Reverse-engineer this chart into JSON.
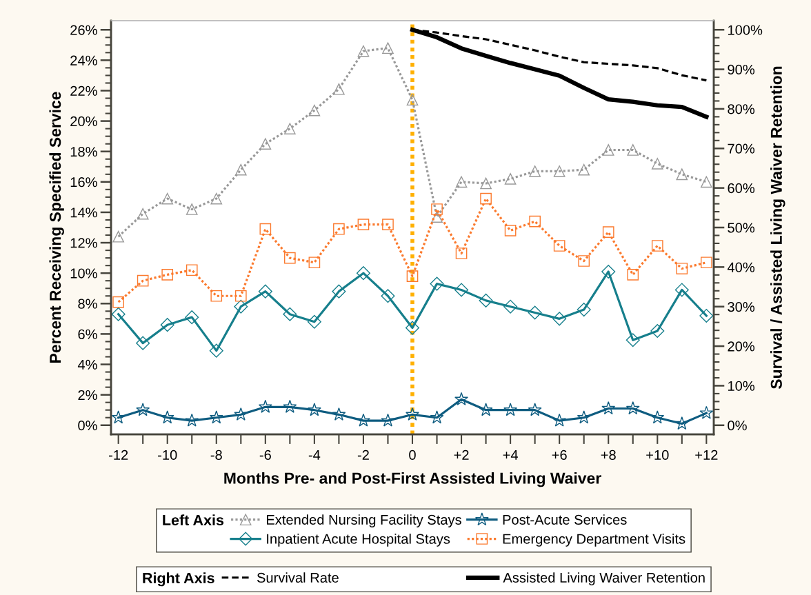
{
  "chart_data": {
    "type": "line",
    "xlabel": "Months Pre- and Post-First Assisted Living Waiver",
    "ylabel": "Percent Receiving Specified Service",
    "y2label": "Survival / Assisted Living Waiver Retention",
    "legend_title": [
      "Left Axis",
      "Right Axis"
    ],
    "legend": "bottom",
    "x": [
      -12,
      -11,
      -10,
      -9,
      -8,
      -7,
      -6,
      -5,
      -4,
      -3,
      -2,
      -1,
      0,
      1,
      2,
      3,
      4,
      5,
      6,
      7,
      8,
      9,
      10,
      11,
      12
    ],
    "xlim": [
      -12.3,
      12.3
    ],
    "xticks": [
      {
        "value": -12,
        "label": "-12"
      },
      {
        "value": -11,
        "label": null
      },
      {
        "value": -10,
        "label": "-10"
      },
      {
        "value": -9,
        "label": null
      },
      {
        "value": -8,
        "label": "-8"
      },
      {
        "value": -7,
        "label": null
      },
      {
        "value": -6,
        "label": "-6"
      },
      {
        "value": -5,
        "label": null
      },
      {
        "value": -4,
        "label": "-4"
      },
      {
        "value": -3,
        "label": null
      },
      {
        "value": -2,
        "label": "-2"
      },
      {
        "value": -1,
        "label": null
      },
      {
        "value": 0,
        "label": "0"
      },
      {
        "value": 1,
        "label": null
      },
      {
        "value": 2,
        "label": "+2"
      },
      {
        "value": 3,
        "label": null
      },
      {
        "value": 4,
        "label": "+4"
      },
      {
        "value": 5,
        "label": null
      },
      {
        "value": 6,
        "label": "+6"
      },
      {
        "value": 7,
        "label": null
      },
      {
        "value": 8,
        "label": "+8"
      },
      {
        "value": 9,
        "label": null
      },
      {
        "value": 10,
        "label": "+10"
      },
      {
        "value": 11,
        "label": null
      },
      {
        "value": 12,
        "label": "+12"
      }
    ],
    "ylim": [
      -0.6,
      26.6
    ],
    "yticks": [
      {
        "value": 0,
        "label": "0%"
      },
      {
        "value": 0.5,
        "label": null
      },
      {
        "value": 1,
        "label": null
      },
      {
        "value": 1.5,
        "label": null
      },
      {
        "value": 2,
        "label": "2%"
      },
      {
        "value": 2.5,
        "label": null
      },
      {
        "value": 3,
        "label": null
      },
      {
        "value": 3.5,
        "label": null
      },
      {
        "value": 4,
        "label": "4%"
      },
      {
        "value": 4.5,
        "label": null
      },
      {
        "value": 5,
        "label": null
      },
      {
        "value": 5.5,
        "label": null
      },
      {
        "value": 6,
        "label": "6%"
      },
      {
        "value": 6.5,
        "label": null
      },
      {
        "value": 7,
        "label": null
      },
      {
        "value": 7.5,
        "label": null
      },
      {
        "value": 8,
        "label": "8%"
      },
      {
        "value": 8.5,
        "label": null
      },
      {
        "value": 9,
        "label": null
      },
      {
        "value": 9.5,
        "label": null
      },
      {
        "value": 10,
        "label": "10%"
      },
      {
        "value": 10.5,
        "label": null
      },
      {
        "value": 11,
        "label": null
      },
      {
        "value": 11.5,
        "label": null
      },
      {
        "value": 12,
        "label": "12%"
      },
      {
        "value": 12.5,
        "label": null
      },
      {
        "value": 13,
        "label": null
      },
      {
        "value": 13.5,
        "label": null
      },
      {
        "value": 14,
        "label": "14%"
      },
      {
        "value": 14.5,
        "label": null
      },
      {
        "value": 15,
        "label": null
      },
      {
        "value": 15.5,
        "label": null
      },
      {
        "value": 16,
        "label": "16%"
      },
      {
        "value": 16.5,
        "label": null
      },
      {
        "value": 17,
        "label": null
      },
      {
        "value": 17.5,
        "label": null
      },
      {
        "value": 18,
        "label": "18%"
      },
      {
        "value": 18.5,
        "label": null
      },
      {
        "value": 19,
        "label": null
      },
      {
        "value": 19.5,
        "label": null
      },
      {
        "value": 20,
        "label": "20%"
      },
      {
        "value": 20.5,
        "label": null
      },
      {
        "value": 21,
        "label": null
      },
      {
        "value": 21.5,
        "label": null
      },
      {
        "value": 22,
        "label": "22%"
      },
      {
        "value": 22.5,
        "label": null
      },
      {
        "value": 23,
        "label": null
      },
      {
        "value": 23.5,
        "label": null
      },
      {
        "value": 24,
        "label": "24%"
      },
      {
        "value": 24.5,
        "label": null
      },
      {
        "value": 25,
        "label": null
      },
      {
        "value": 25.5,
        "label": null
      },
      {
        "value": 26,
        "label": "26%"
      }
    ],
    "y2lim": [
      -2.3,
      102.3
    ],
    "y2ticks": [
      {
        "value": 0,
        "label": "0%"
      },
      {
        "value": 2,
        "label": null
      },
      {
        "value": 4,
        "label": null
      },
      {
        "value": 6,
        "label": null
      },
      {
        "value": 8,
        "label": null
      },
      {
        "value": 10,
        "label": "10%"
      },
      {
        "value": 12,
        "label": null
      },
      {
        "value": 14,
        "label": null
      },
      {
        "value": 16,
        "label": null
      },
      {
        "value": 18,
        "label": null
      },
      {
        "value": 20,
        "label": "20%"
      },
      {
        "value": 22,
        "label": null
      },
      {
        "value": 24,
        "label": null
      },
      {
        "value": 26,
        "label": null
      },
      {
        "value": 28,
        "label": null
      },
      {
        "value": 30,
        "label": "30%"
      },
      {
        "value": 32,
        "label": null
      },
      {
        "value": 34,
        "label": null
      },
      {
        "value": 36,
        "label": null
      },
      {
        "value": 38,
        "label": null
      },
      {
        "value": 40,
        "label": "40%"
      },
      {
        "value": 42,
        "label": null
      },
      {
        "value": 44,
        "label": null
      },
      {
        "value": 46,
        "label": null
      },
      {
        "value": 48,
        "label": null
      },
      {
        "value": 50,
        "label": "50%"
      },
      {
        "value": 52,
        "label": null
      },
      {
        "value": 54,
        "label": null
      },
      {
        "value": 56,
        "label": null
      },
      {
        "value": 58,
        "label": null
      },
      {
        "value": 60,
        "label": "60%"
      },
      {
        "value": 62,
        "label": null
      },
      {
        "value": 64,
        "label": null
      },
      {
        "value": 66,
        "label": null
      },
      {
        "value": 68,
        "label": null
      },
      {
        "value": 70,
        "label": "70%"
      },
      {
        "value": 72,
        "label": null
      },
      {
        "value": 74,
        "label": null
      },
      {
        "value": 76,
        "label": null
      },
      {
        "value": 78,
        "label": null
      },
      {
        "value": 80,
        "label": "80%"
      },
      {
        "value": 82,
        "label": null
      },
      {
        "value": 84,
        "label": null
      },
      {
        "value": 86,
        "label": null
      },
      {
        "value": 88,
        "label": null
      },
      {
        "value": 90,
        "label": "90%"
      },
      {
        "value": 92,
        "label": null
      },
      {
        "value": 94,
        "label": null
      },
      {
        "value": 96,
        "label": null
      },
      {
        "value": 98,
        "label": null
      },
      {
        "value": 100,
        "label": "100%"
      }
    ],
    "ref_lines": [
      {
        "axis": "x",
        "value": 0,
        "color": "#ffb000",
        "line_style": "dotted"
      }
    ],
    "series": [
      {
        "name": "Extended Nursing Facility Stays",
        "color": "#999999",
        "marker": "triangle",
        "line_style": "dotted",
        "values": [
          12.4,
          13.9,
          14.9,
          14.2,
          14.9,
          16.8,
          18.5,
          19.5,
          20.7,
          22.1,
          24.6,
          24.8,
          21.4,
          13.7,
          16.0,
          15.9,
          16.2,
          16.7,
          16.7,
          16.8,
          18.1,
          18.1,
          17.2,
          16.5,
          16.0
        ]
      },
      {
        "name": "Inpatient Acute Hospital Stays",
        "color": "#167f8c",
        "marker": "diamond",
        "line_style": "solid",
        "values": [
          7.3,
          5.4,
          6.6,
          7.1,
          4.9,
          7.8,
          8.8,
          7.3,
          6.8,
          8.8,
          10.0,
          8.5,
          6.4,
          9.3,
          8.9,
          8.2,
          7.8,
          7.4,
          7.0,
          7.6,
          10.1,
          5.6,
          6.2,
          8.9,
          7.2
        ]
      },
      {
        "name": "Post-Acute Services",
        "color": "#0e5c80",
        "marker": "star",
        "line_style": "solid",
        "values": [
          0.5,
          1.0,
          0.5,
          0.3,
          0.5,
          0.7,
          1.2,
          1.2,
          1.0,
          0.7,
          0.3,
          0.3,
          0.7,
          0.5,
          1.7,
          1.0,
          1.0,
          1.0,
          0.3,
          0.5,
          1.1,
          1.1,
          0.5,
          0.1,
          0.8
        ]
      },
      {
        "name": "Emergency Department Visits",
        "color": "#fb7a2e",
        "marker": "square",
        "line_style": "dotted",
        "values": [
          8.1,
          9.5,
          9.9,
          10.2,
          8.5,
          8.5,
          12.9,
          11.0,
          10.7,
          12.9,
          13.2,
          13.2,
          9.8,
          14.2,
          11.3,
          14.9,
          12.8,
          13.4,
          11.8,
          10.8,
          12.7,
          9.9,
          11.8,
          10.3,
          10.7
        ]
      },
      {
        "name": "Survival Rate",
        "color": "#000000",
        "axis": "y2",
        "marker": "none",
        "line_style": "dashed",
        "x": [
          0,
          1,
          2,
          3,
          4,
          5,
          6,
          7,
          8,
          9,
          10,
          11,
          12
        ],
        "values": [
          100,
          99.3,
          98.4,
          97.6,
          96.2,
          94.8,
          93.2,
          91.8,
          91.4,
          91.0,
          90.3,
          88.5,
          87.2
        ]
      },
      {
        "name": "Assisted Living Waiver Retention",
        "color": "#000000",
        "axis": "y2",
        "marker": "none",
        "line_style": "solid",
        "x": [
          0,
          1,
          2,
          3,
          4,
          5,
          6,
          7,
          8,
          9,
          10,
          11,
          12
        ],
        "values": [
          100,
          98.1,
          95.3,
          93.4,
          91.6,
          90.0,
          88.4,
          85.3,
          82.4,
          81.8,
          80.9,
          80.5,
          78.0
        ]
      }
    ]
  }
}
